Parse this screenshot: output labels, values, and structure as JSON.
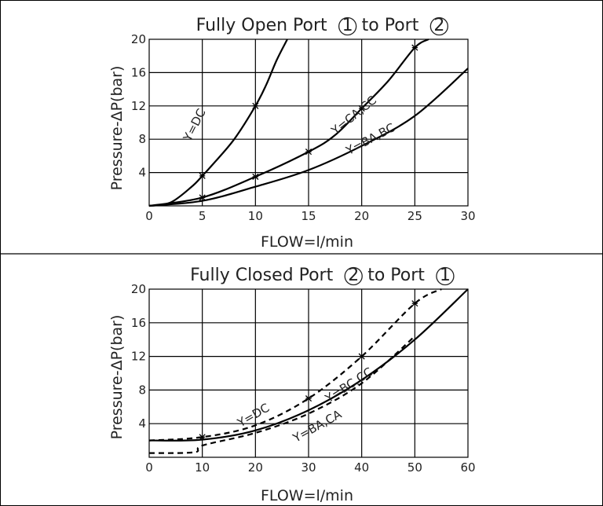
{
  "chart_data": [
    {
      "type": "line",
      "title_parts": [
        "Fully Open Port ",
        "1",
        " to Port ",
        "2"
      ],
      "xlabel": "FLOW=l/min",
      "ylabel": "Pressure-ΔP(bar)",
      "xlim": [
        0,
        30
      ],
      "ylim": [
        0,
        20
      ],
      "xticks": [
        "0",
        "5",
        "10",
        "15",
        "20",
        "25",
        "30"
      ],
      "yticks": [
        "4",
        "8",
        "12",
        "16",
        "20"
      ],
      "grid": true,
      "series": [
        {
          "name": "Y=DC",
          "style": "solid",
          "x": [
            0,
            2,
            4,
            5,
            6,
            8,
            10,
            11,
            12,
            13
          ],
          "y": [
            0,
            0.4,
            2.3,
            3.6,
            5.0,
            8.0,
            12.0,
            14.5,
            17.5,
            20
          ],
          "markers": [
            5,
            10
          ]
        },
        {
          "name": "Y=CA,CC",
          "style": "solid",
          "x": [
            0,
            5,
            10,
            15,
            17.5,
            20,
            22.5,
            25,
            26.3
          ],
          "y": [
            0,
            1.0,
            3.5,
            6.5,
            8.5,
            11.7,
            15.0,
            19.0,
            20
          ],
          "markers": [
            5,
            10,
            15,
            20,
            25
          ]
        },
        {
          "name": "Y=BA,BC",
          "style": "solid",
          "x": [
            0,
            5,
            10,
            15,
            20,
            25,
            30
          ],
          "y": [
            0,
            0.6,
            2.3,
            4.3,
            7.2,
            10.8,
            16.5
          ],
          "markers": []
        }
      ]
    },
    {
      "type": "line",
      "title_parts": [
        "Fully Closed Port ",
        "2",
        " to Port ",
        "1"
      ],
      "xlabel": "FLOW=l/min",
      "ylabel": "Pressure-ΔP(bar)",
      "xlim": [
        0,
        60
      ],
      "ylim": [
        0,
        20
      ],
      "xticks": [
        "0",
        "10",
        "20",
        "30",
        "40",
        "50",
        "60"
      ],
      "yticks": [
        "4",
        "8",
        "12",
        "16",
        "20"
      ],
      "grid": true,
      "series": [
        {
          "name": "Y=DC",
          "style": "dashed",
          "x": [
            0,
            10,
            20,
            30,
            40,
            50,
            55
          ],
          "y": [
            2.0,
            2.4,
            3.8,
            7.0,
            12.0,
            18.3,
            20
          ],
          "markers": [
            10,
            30,
            40,
            50
          ]
        },
        {
          "name": "Y=BC,CC",
          "style": "solid",
          "x": [
            0,
            10,
            20,
            30,
            40,
            50,
            60
          ],
          "y": [
            2.0,
            2.1,
            3.2,
            5.6,
            9.2,
            14.0,
            20
          ],
          "markers": []
        },
        {
          "name": "Y=BA,CA",
          "style": "dashed",
          "x": [
            0,
            8.5,
            10,
            20,
            30,
            40,
            50
          ],
          "y": [
            0.5,
            0.6,
            1.4,
            2.9,
            5.2,
            8.8,
            14.4
          ],
          "markers": []
        }
      ]
    }
  ]
}
